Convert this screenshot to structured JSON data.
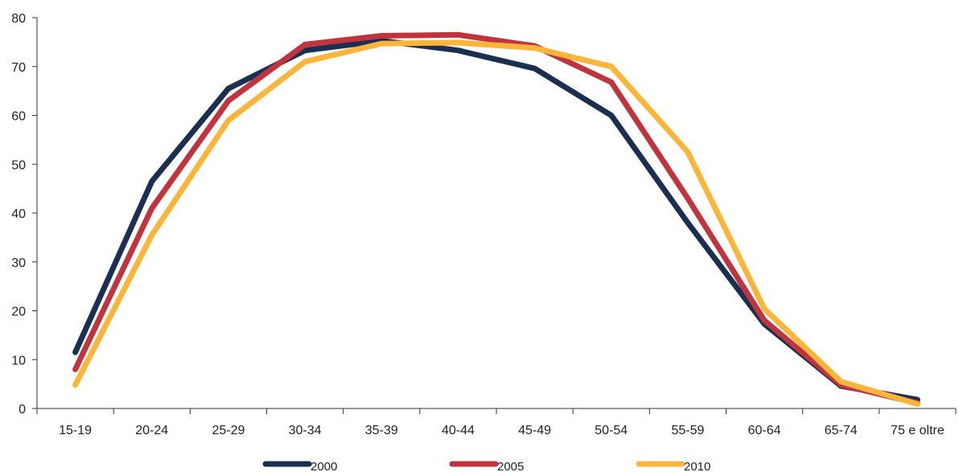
{
  "chart_data": {
    "type": "line",
    "title": "",
    "xlabel": "",
    "ylabel": "",
    "categories": [
      "15-19",
      "20-24",
      "25-29",
      "30-34",
      "35-39",
      "40-44",
      "45-49",
      "50-54",
      "55-59",
      "60-64",
      "65-74",
      "75 e oltre"
    ],
    "ylim": [
      0,
      80
    ],
    "yticks": [
      0,
      10,
      20,
      30,
      40,
      50,
      60,
      70,
      80
    ],
    "grid": false,
    "legend_position": "bottom",
    "series": [
      {
        "name": "2000",
        "color": "#1b3050",
        "values": [
          11.5,
          46.5,
          65.5,
          73.3,
          75.3,
          73.3,
          69.6,
          60.0,
          38.0,
          17.3,
          4.6,
          1.8
        ]
      },
      {
        "name": "2005",
        "color": "#c0343e",
        "values": [
          8.0,
          41.0,
          63.0,
          74.5,
          76.3,
          76.5,
          74.2,
          66.8,
          43.0,
          18.0,
          4.8,
          1.1
        ]
      },
      {
        "name": "2010",
        "color": "#fbb53b",
        "values": [
          4.8,
          35.5,
          59.0,
          71.0,
          74.7,
          74.9,
          73.8,
          70.0,
          52.5,
          20.4,
          5.5,
          0.9
        ]
      }
    ]
  }
}
